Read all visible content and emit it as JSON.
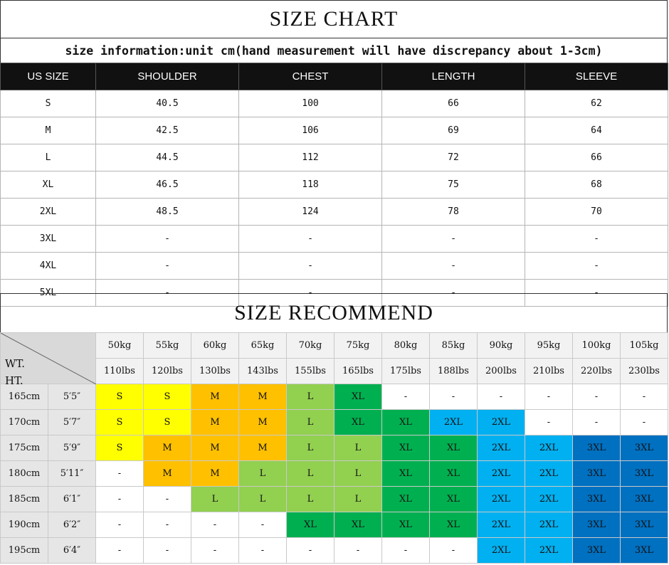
{
  "title": "SIZE CHART",
  "info": "size information:unit cm(hand measurement will have discrepancy about 1-3cm)",
  "size_table": {
    "headers": [
      "US SIZE",
      "SHOULDER",
      "CHEST",
      "LENGTH",
      "SLEEVE"
    ],
    "rows": [
      [
        "S",
        "40.5",
        "100",
        "66",
        "62"
      ],
      [
        "M",
        "42.5",
        "106",
        "69",
        "64"
      ],
      [
        "L",
        "44.5",
        "112",
        "72",
        "66"
      ],
      [
        "XL",
        "46.5",
        "118",
        "75",
        "68"
      ],
      [
        "2XL",
        "48.5",
        "124",
        "78",
        "70"
      ],
      [
        "3XL",
        "-",
        "-",
        "-",
        "-"
      ],
      [
        "4XL",
        "-",
        "-",
        "-",
        "-"
      ],
      [
        "5XL",
        "-",
        "-",
        "-",
        "-"
      ]
    ]
  },
  "recommend": {
    "title": "SIZE RECOMMEND",
    "corner_wt": "WT.",
    "corner_ht": "HT.",
    "weights_kg": [
      "50kg",
      "55kg",
      "60kg",
      "65kg",
      "70kg",
      "75kg",
      "80kg",
      "85kg",
      "90kg",
      "95kg",
      "100kg",
      "105kg"
    ],
    "weights_lbs": [
      "110lbs",
      "120lbs",
      "130lbs",
      "143lbs",
      "155lbs",
      "165lbs",
      "175lbs",
      "188lbs",
      "200lbs",
      "210lbs",
      "220lbs",
      "230lbs"
    ],
    "rows": [
      {
        "cm": "165cm",
        "ft": "5′5″",
        "sizes": [
          "S",
          "S",
          "M",
          "M",
          "L",
          "XL",
          "-",
          "-",
          "-",
          "-",
          "-",
          "-"
        ]
      },
      {
        "cm": "170cm",
        "ft": "5′7″",
        "sizes": [
          "S",
          "S",
          "M",
          "M",
          "L",
          "XL",
          "XL",
          "2XL",
          "2XL",
          "-",
          "-",
          "-"
        ]
      },
      {
        "cm": "175cm",
        "ft": "5′9″",
        "sizes": [
          "S",
          "M",
          "M",
          "M",
          "L",
          "L",
          "XL",
          "XL",
          "2XL",
          "2XL",
          "3XL",
          "3XL"
        ]
      },
      {
        "cm": "180cm",
        "ft": "5′11″",
        "sizes": [
          "-",
          "M",
          "M",
          "L",
          "L",
          "L",
          "XL",
          "XL",
          "2XL",
          "2XL",
          "3XL",
          "3XL"
        ]
      },
      {
        "cm": "185cm",
        "ft": "6′1″",
        "sizes": [
          "-",
          "-",
          "L",
          "L",
          "L",
          "L",
          "XL",
          "XL",
          "2XL",
          "2XL",
          "3XL",
          "3XL"
        ]
      },
      {
        "cm": "190cm",
        "ft": "6′2″",
        "sizes": [
          "-",
          "-",
          "-",
          "-",
          "XL",
          "XL",
          "XL",
          "XL",
          "2XL",
          "2XL",
          "3XL",
          "3XL"
        ]
      },
      {
        "cm": "195cm",
        "ft": "6′4″",
        "sizes": [
          "-",
          "-",
          "-",
          "-",
          "-",
          "-",
          "-",
          "-",
          "2XL",
          "2XL",
          "3XL",
          "3XL"
        ]
      }
    ],
    "colors": {
      "S": "#ffff00",
      "M": "#ffc000",
      "L": "#92d050",
      "XL": "#00b050",
      "2XL": "#00b0f0",
      "3XL": "#0070c0",
      "-": "#ffffff"
    }
  }
}
